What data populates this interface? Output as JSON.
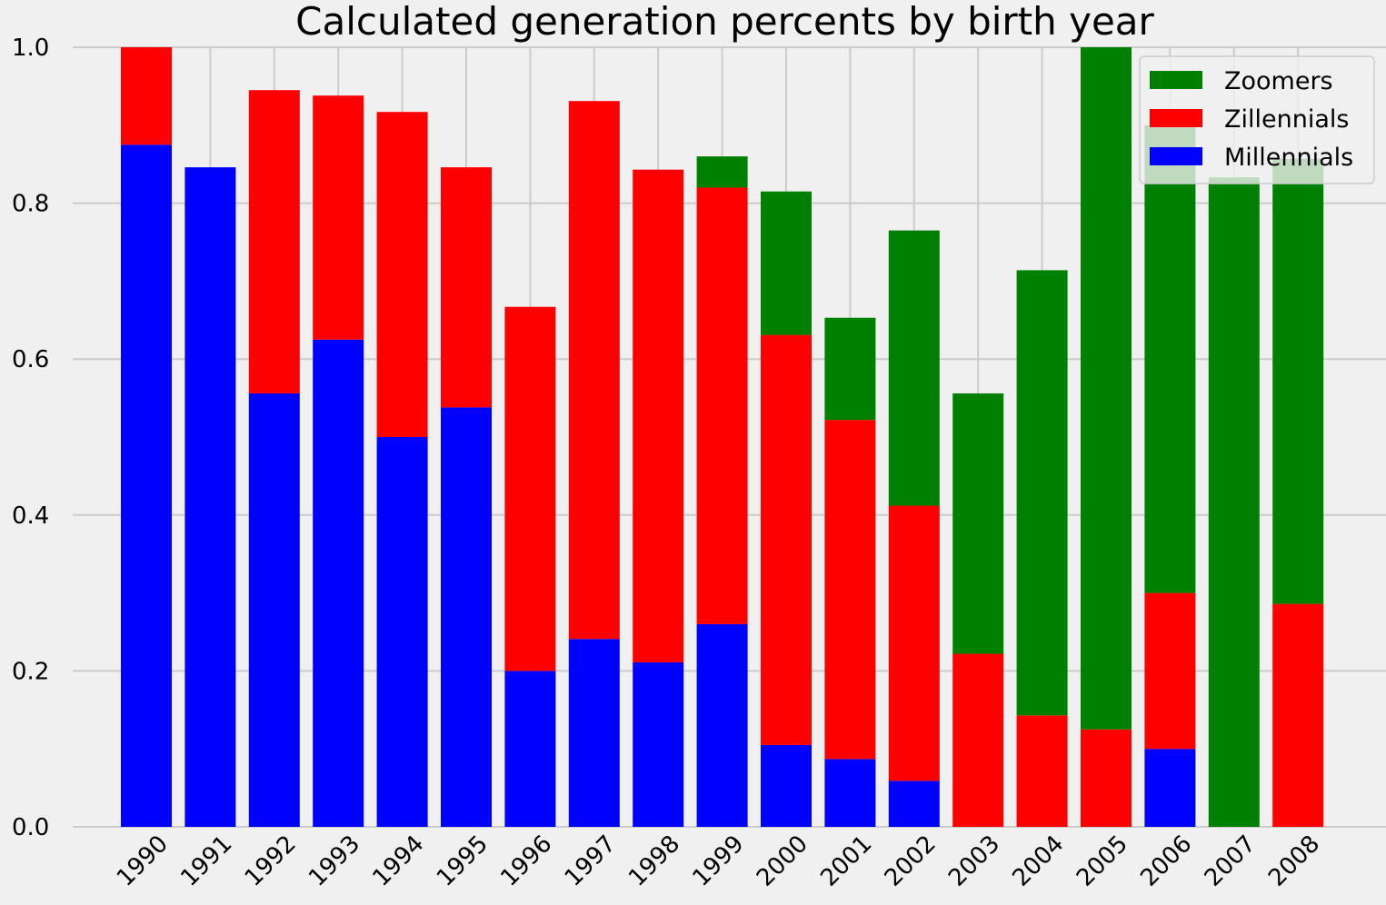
{
  "chart_data": {
    "type": "bar",
    "stacked": true,
    "title": "Calculated generation percents by birth year",
    "xlabel": "",
    "ylabel": "",
    "ylim": [
      0,
      1.0
    ],
    "yticks": [
      "0.0",
      "0.2",
      "0.4",
      "0.6",
      "0.8",
      "1.0"
    ],
    "grid": true,
    "legend_position": "top-right",
    "categories": [
      "1990",
      "1991",
      "1992",
      "1993",
      "1994",
      "1995",
      "1996",
      "1997",
      "1998",
      "1999",
      "2000",
      "2001",
      "2002",
      "2003",
      "2004",
      "2005",
      "2006",
      "2007",
      "2008"
    ],
    "series": [
      {
        "name": "Millennials",
        "color": "#0000ff",
        "values": [
          0.875,
          0.846,
          0.556,
          0.625,
          0.5,
          0.538,
          0.2,
          0.241,
          0.211,
          0.26,
          0.105,
          0.087,
          0.059,
          0,
          0,
          0,
          0.1,
          0,
          0
        ]
      },
      {
        "name": "Zillennials",
        "color": "#ff0000",
        "values": [
          0.125,
          0,
          0.389,
          0.313,
          0.417,
          0.308,
          0.467,
          0.69,
          0.632,
          0.56,
          0.526,
          0.435,
          0.353,
          0.222,
          0.143,
          0.125,
          0.2,
          0,
          0.286
        ]
      },
      {
        "name": "Zoomers",
        "color": "#008000",
        "values": [
          0,
          0,
          0,
          0,
          0,
          0,
          0,
          0,
          0,
          0.04,
          0.184,
          0.131,
          0.353,
          0.334,
          0.571,
          0.875,
          0.6,
          0.833,
          0.571
        ]
      }
    ],
    "legend_order": [
      "Zoomers",
      "Zillennials",
      "Millennials"
    ]
  }
}
